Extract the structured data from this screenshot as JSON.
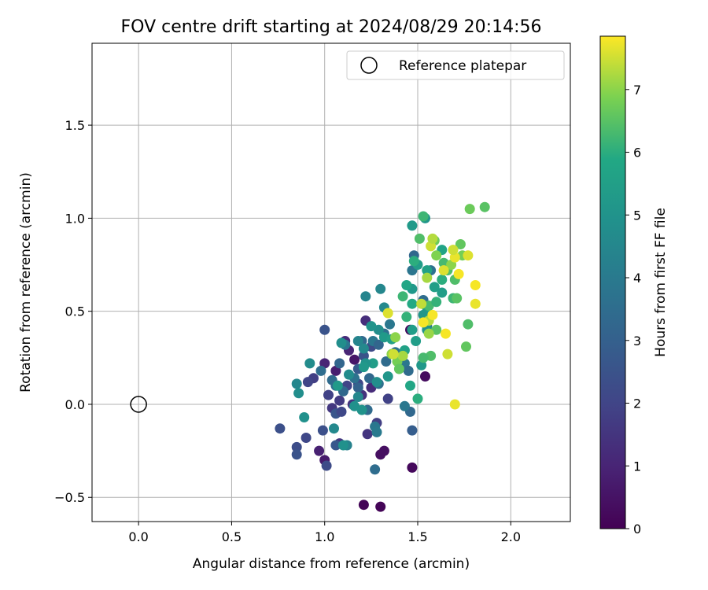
{
  "chart_data": {
    "type": "scatter",
    "title": "FOV centre drift starting at 2024/08/29 20:14:56",
    "xlabel": "Angular distance from reference (arcmin)",
    "ylabel": "Rotation from reference (arcmin)",
    "xlim": [
      -0.25,
      2.32
    ],
    "ylim": [
      -0.63,
      1.94
    ],
    "xticks": [
      "0.0",
      "0.5",
      "1.0",
      "1.5",
      "2.0"
    ],
    "xtick_values": [
      0.0,
      0.5,
      1.0,
      1.5,
      2.0
    ],
    "yticks": [
      "−0.5",
      "0.0",
      "0.5",
      "1.0",
      "1.5"
    ],
    "ytick_values": [
      -0.5,
      0.0,
      0.5,
      1.0,
      1.5
    ],
    "grid": true,
    "legend": {
      "placement": "top-right",
      "entries": [
        "Reference platepar"
      ]
    },
    "reference_point": {
      "x": 0.0,
      "y": 0.0
    },
    "colorbar": {
      "label": "Hours from first FF file",
      "colormap": "viridis",
      "range": [
        0,
        7.85
      ],
      "ticks": [
        "0",
        "1",
        "2",
        "3",
        "4",
        "5",
        "6",
        "7"
      ],
      "tick_values": [
        0,
        1,
        2,
        3,
        4,
        5,
        6,
        7
      ]
    },
    "points": [
      {
        "x": 1.21,
        "y": -0.54,
        "c": 0.1
      },
      {
        "x": 1.3,
        "y": -0.55,
        "c": 0.1
      },
      {
        "x": 1.47,
        "y": -0.34,
        "c": 0.2
      },
      {
        "x": 1.3,
        "y": -0.27,
        "c": 0.4
      },
      {
        "x": 1.32,
        "y": -0.25,
        "c": 0.4
      },
      {
        "x": 1.54,
        "y": 0.15,
        "c": 0.3
      },
      {
        "x": 1.46,
        "y": 0.4,
        "c": 0.3
      },
      {
        "x": 1.16,
        "y": 0.24,
        "c": 0.6
      },
      {
        "x": 1.06,
        "y": 0.18,
        "c": 0.8
      },
      {
        "x": 1.0,
        "y": -0.3,
        "c": 0.7
      },
      {
        "x": 0.97,
        "y": -0.25,
        "c": 0.9
      },
      {
        "x": 1.0,
        "y": 0.22,
        "c": 1.0
      },
      {
        "x": 1.13,
        "y": 0.29,
        "c": 1.0
      },
      {
        "x": 1.11,
        "y": 0.34,
        "c": 1.2
      },
      {
        "x": 1.22,
        "y": 0.45,
        "c": 1.3
      },
      {
        "x": 1.25,
        "y": 0.09,
        "c": 1.2
      },
      {
        "x": 1.2,
        "y": 0.05,
        "c": 1.4
      },
      {
        "x": 1.08,
        "y": -0.21,
        "c": 1.5
      },
      {
        "x": 1.04,
        "y": -0.02,
        "c": 1.6
      },
      {
        "x": 1.08,
        "y": 0.02,
        "c": 1.7
      },
      {
        "x": 1.15,
        "y": 0.0,
        "c": 1.5
      },
      {
        "x": 1.23,
        "y": -0.16,
        "c": 1.5
      },
      {
        "x": 1.28,
        "y": -0.1,
        "c": 1.8
      },
      {
        "x": 1.34,
        "y": 0.03,
        "c": 1.9
      },
      {
        "x": 0.94,
        "y": 0.14,
        "c": 1.8
      },
      {
        "x": 0.91,
        "y": 0.12,
        "c": 2.0
      },
      {
        "x": 0.9,
        "y": -0.18,
        "c": 2.1
      },
      {
        "x": 1.01,
        "y": -0.33,
        "c": 2.2
      },
      {
        "x": 0.85,
        "y": -0.23,
        "c": 2.3
      },
      {
        "x": 0.85,
        "y": -0.27,
        "c": 2.5
      },
      {
        "x": 0.76,
        "y": -0.13,
        "c": 2.4
      },
      {
        "x": 0.99,
        "y": -0.14,
        "c": 2.4
      },
      {
        "x": 1.06,
        "y": -0.22,
        "c": 2.7
      },
      {
        "x": 1.06,
        "y": -0.05,
        "c": 2.6
      },
      {
        "x": 1.18,
        "y": 0.19,
        "c": 2.8
      },
      {
        "x": 1.21,
        "y": 0.26,
        "c": 2.5
      },
      {
        "x": 1.25,
        "y": 0.31,
        "c": 2.2
      },
      {
        "x": 1.0,
        "y": 0.4,
        "c": 2.5
      },
      {
        "x": 1.18,
        "y": 0.11,
        "c": 2.1
      },
      {
        "x": 1.12,
        "y": 0.1,
        "c": 2.0
      },
      {
        "x": 1.02,
        "y": 0.05,
        "c": 1.9
      },
      {
        "x": 1.09,
        "y": -0.04,
        "c": 2.1
      },
      {
        "x": 1.47,
        "y": -0.14,
        "c": 2.9
      },
      {
        "x": 1.46,
        "y": -0.04,
        "c": 3.3
      },
      {
        "x": 1.43,
        "y": -0.01,
        "c": 3.9
      },
      {
        "x": 1.27,
        "y": -0.35,
        "c": 3.5
      },
      {
        "x": 1.12,
        "y": -0.22,
        "c": 4.3
      },
      {
        "x": 1.27,
        "y": -0.12,
        "c": 3.9
      },
      {
        "x": 1.28,
        "y": -0.15,
        "c": 4.0
      },
      {
        "x": 1.23,
        "y": -0.03,
        "c": 3.4
      },
      {
        "x": 1.29,
        "y": 0.11,
        "c": 3.6
      },
      {
        "x": 1.24,
        "y": 0.14,
        "c": 3.3
      },
      {
        "x": 1.16,
        "y": 0.14,
        "c": 3.7
      },
      {
        "x": 1.18,
        "y": 0.09,
        "c": 3.1
      },
      {
        "x": 1.1,
        "y": 0.07,
        "c": 3.3
      },
      {
        "x": 1.06,
        "y": 0.1,
        "c": 3.5
      },
      {
        "x": 1.04,
        "y": 0.13,
        "c": 3.4
      },
      {
        "x": 0.98,
        "y": 0.18,
        "c": 3.5
      },
      {
        "x": 1.08,
        "y": 0.22,
        "c": 3.2
      },
      {
        "x": 1.11,
        "y": 0.32,
        "c": 3.8
      },
      {
        "x": 1.2,
        "y": 0.34,
        "c": 3.3
      },
      {
        "x": 1.26,
        "y": 0.34,
        "c": 3.9
      },
      {
        "x": 1.29,
        "y": 0.32,
        "c": 3.2
      },
      {
        "x": 1.32,
        "y": 0.38,
        "c": 3.6
      },
      {
        "x": 1.35,
        "y": 0.43,
        "c": 3.9
      },
      {
        "x": 1.33,
        "y": 0.23,
        "c": 3.4
      },
      {
        "x": 1.38,
        "y": 0.28,
        "c": 3.7
      },
      {
        "x": 1.43,
        "y": 0.22,
        "c": 3.9
      },
      {
        "x": 1.45,
        "y": 0.18,
        "c": 3.4
      },
      {
        "x": 1.47,
        "y": 0.72,
        "c": 3.8
      },
      {
        "x": 1.48,
        "y": 0.8,
        "c": 3.3
      },
      {
        "x": 1.53,
        "y": 0.56,
        "c": 3.5
      },
      {
        "x": 1.55,
        "y": 0.42,
        "c": 3.9
      },
      {
        "x": 1.57,
        "y": 0.72,
        "c": 3.7
      },
      {
        "x": 1.22,
        "y": 0.58,
        "c": 4.4
      },
      {
        "x": 1.3,
        "y": 0.62,
        "c": 4.5
      },
      {
        "x": 1.32,
        "y": 0.52,
        "c": 4.6
      },
      {
        "x": 1.29,
        "y": 0.4,
        "c": 4.8
      },
      {
        "x": 1.25,
        "y": 0.42,
        "c": 5.0
      },
      {
        "x": 1.21,
        "y": 0.3,
        "c": 4.6
      },
      {
        "x": 1.18,
        "y": 0.34,
        "c": 4.4
      },
      {
        "x": 1.09,
        "y": 0.33,
        "c": 4.8
      },
      {
        "x": 1.13,
        "y": 0.16,
        "c": 4.7
      },
      {
        "x": 1.18,
        "y": 0.04,
        "c": 4.5
      },
      {
        "x": 1.16,
        "y": -0.01,
        "c": 4.9
      },
      {
        "x": 1.2,
        "y": -0.03,
        "c": 5.0
      },
      {
        "x": 1.1,
        "y": -0.22,
        "c": 4.9
      },
      {
        "x": 1.05,
        "y": -0.13,
        "c": 4.6
      },
      {
        "x": 0.89,
        "y": -0.07,
        "c": 4.9
      },
      {
        "x": 0.86,
        "y": 0.06,
        "c": 4.8
      },
      {
        "x": 0.85,
        "y": 0.11,
        "c": 4.5
      },
      {
        "x": 0.92,
        "y": 0.22,
        "c": 4.7
      },
      {
        "x": 1.28,
        "y": 0.12,
        "c": 4.8
      },
      {
        "x": 1.34,
        "y": 0.15,
        "c": 5.1
      },
      {
        "x": 1.32,
        "y": 0.36,
        "c": 5.3
      },
      {
        "x": 1.36,
        "y": 0.35,
        "c": 5.5
      },
      {
        "x": 1.26,
        "y": 0.22,
        "c": 5.4
      },
      {
        "x": 1.22,
        "y": 0.22,
        "c": 5.0
      },
      {
        "x": 1.21,
        "y": 0.2,
        "c": 5.2
      },
      {
        "x": 1.07,
        "y": 0.1,
        "c": 5.3
      },
      {
        "x": 1.43,
        "y": 0.29,
        "c": 5.6
      },
      {
        "x": 1.49,
        "y": 0.34,
        "c": 5.4
      },
      {
        "x": 1.52,
        "y": 0.21,
        "c": 5.2
      },
      {
        "x": 1.55,
        "y": 0.4,
        "c": 5.0
      },
      {
        "x": 1.47,
        "y": 0.4,
        "c": 5.4
      },
      {
        "x": 1.47,
        "y": 0.62,
        "c": 5.2
      },
      {
        "x": 1.47,
        "y": 0.96,
        "c": 5.3
      },
      {
        "x": 1.54,
        "y": 1.0,
        "c": 5.1
      },
      {
        "x": 1.5,
        "y": 0.75,
        "c": 5.4
      },
      {
        "x": 1.55,
        "y": 0.72,
        "c": 5.6
      },
      {
        "x": 1.55,
        "y": 0.52,
        "c": 5.5
      },
      {
        "x": 1.53,
        "y": 0.48,
        "c": 5.1
      },
      {
        "x": 1.63,
        "y": 0.83,
        "c": 5.7
      },
      {
        "x": 1.63,
        "y": 0.6,
        "c": 5.4
      },
      {
        "x": 1.59,
        "y": 0.63,
        "c": 5.5
      },
      {
        "x": 1.46,
        "y": 0.1,
        "c": 5.8
      },
      {
        "x": 1.5,
        "y": 0.03,
        "c": 6.0
      },
      {
        "x": 1.47,
        "y": 0.54,
        "c": 5.9
      },
      {
        "x": 1.44,
        "y": 0.47,
        "c": 6.1
      },
      {
        "x": 1.42,
        "y": 0.58,
        "c": 6.2
      },
      {
        "x": 1.44,
        "y": 0.64,
        "c": 5.8
      },
      {
        "x": 1.48,
        "y": 0.77,
        "c": 6.0
      },
      {
        "x": 1.53,
        "y": 1.01,
        "c": 6.2
      },
      {
        "x": 1.51,
        "y": 0.89,
        "c": 6.4
      },
      {
        "x": 1.56,
        "y": 0.53,
        "c": 6.3
      },
      {
        "x": 1.6,
        "y": 0.55,
        "c": 6.1
      },
      {
        "x": 1.6,
        "y": 0.4,
        "c": 6.5
      },
      {
        "x": 1.57,
        "y": 0.26,
        "c": 6.4
      },
      {
        "x": 1.53,
        "y": 0.25,
        "c": 6.3
      },
      {
        "x": 1.63,
        "y": 0.67,
        "c": 6.0
      },
      {
        "x": 1.66,
        "y": 0.72,
        "c": 6.4
      },
      {
        "x": 1.69,
        "y": 0.57,
        "c": 6.2
      },
      {
        "x": 1.71,
        "y": 0.57,
        "c": 6.5
      },
      {
        "x": 1.76,
        "y": 0.31,
        "c": 6.6
      },
      {
        "x": 1.77,
        "y": 0.43,
        "c": 6.4
      },
      {
        "x": 1.59,
        "y": 0.88,
        "c": 6.7
      },
      {
        "x": 1.64,
        "y": 0.76,
        "c": 6.3
      },
      {
        "x": 1.7,
        "y": 0.67,
        "c": 6.4
      },
      {
        "x": 1.73,
        "y": 0.86,
        "c": 6.6
      },
      {
        "x": 1.78,
        "y": 1.05,
        "c": 6.7
      },
      {
        "x": 1.86,
        "y": 1.06,
        "c": 6.5
      },
      {
        "x": 1.6,
        "y": 0.8,
        "c": 6.9
      },
      {
        "x": 1.68,
        "y": 0.75,
        "c": 7.0
      },
      {
        "x": 1.74,
        "y": 0.8,
        "c": 6.8
      },
      {
        "x": 1.39,
        "y": 0.23,
        "c": 6.8
      },
      {
        "x": 1.4,
        "y": 0.19,
        "c": 6.6
      },
      {
        "x": 1.36,
        "y": 0.27,
        "c": 7.0
      },
      {
        "x": 1.42,
        "y": 0.26,
        "c": 7.2
      },
      {
        "x": 1.38,
        "y": 0.36,
        "c": 7.0
      },
      {
        "x": 1.56,
        "y": 0.38,
        "c": 7.1
      },
      {
        "x": 1.56,
        "y": 0.45,
        "c": 7.3
      },
      {
        "x": 1.52,
        "y": 0.54,
        "c": 7.4
      },
      {
        "x": 1.55,
        "y": 0.68,
        "c": 7.2
      },
      {
        "x": 1.57,
        "y": 0.85,
        "c": 7.5
      },
      {
        "x": 1.58,
        "y": 0.89,
        "c": 7.3
      },
      {
        "x": 1.64,
        "y": 0.72,
        "c": 7.6
      },
      {
        "x": 1.66,
        "y": 0.27,
        "c": 7.5
      },
      {
        "x": 1.65,
        "y": 0.38,
        "c": 7.8
      },
      {
        "x": 1.7,
        "y": 0.0,
        "c": 7.7
      },
      {
        "x": 1.7,
        "y": 0.79,
        "c": 7.7
      },
      {
        "x": 1.72,
        "y": 0.7,
        "c": 7.8
      },
      {
        "x": 1.77,
        "y": 0.8,
        "c": 7.6
      },
      {
        "x": 1.81,
        "y": 0.64,
        "c": 7.8
      },
      {
        "x": 1.81,
        "y": 0.54,
        "c": 7.7
      },
      {
        "x": 1.58,
        "y": 0.48,
        "c": 7.8
      },
      {
        "x": 1.34,
        "y": 0.49,
        "c": 7.6
      },
      {
        "x": 1.37,
        "y": 0.27,
        "c": 7.5
      },
      {
        "x": 1.53,
        "y": 0.44,
        "c": 7.8
      },
      {
        "x": 1.69,
        "y": 0.83,
        "c": 7.5
      }
    ]
  }
}
